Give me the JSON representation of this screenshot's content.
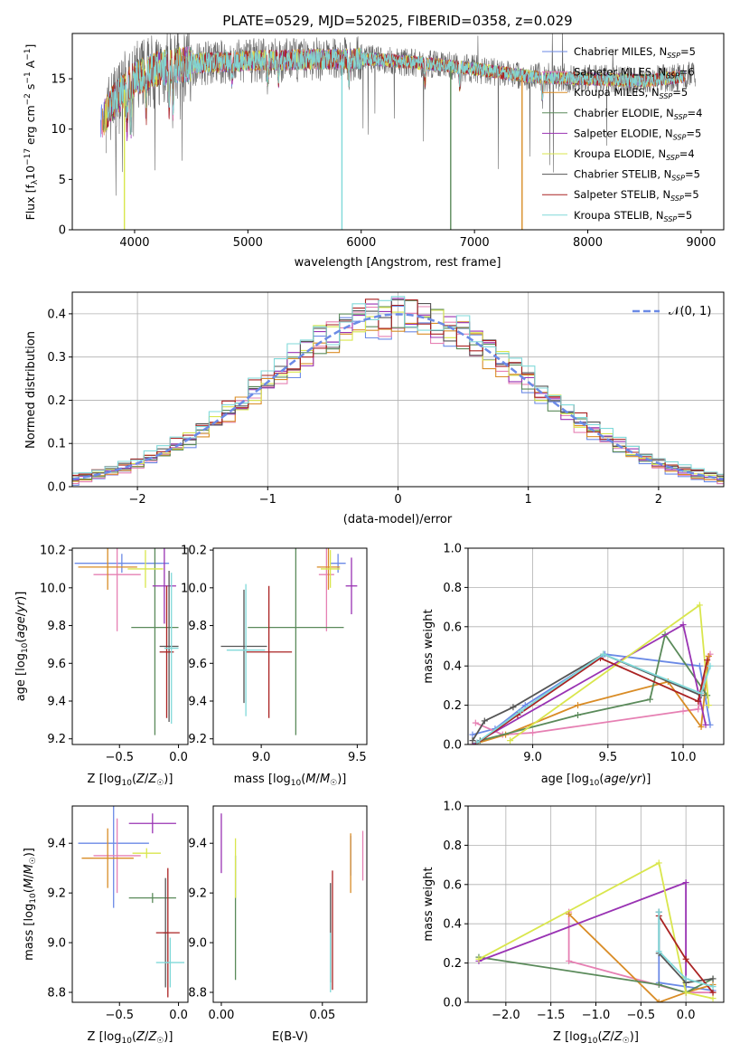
{
  "title": "PLATE=0529, MJD=52025, FIBERID=0358, z=0.029",
  "series": [
    {
      "name": "Chabrier MILES, N<sub>SSP</sub>=5",
      "legend": "Chabrier MILES, N_SSP=5",
      "color": "#6b8ae6"
    },
    {
      "name": "Salpeter MILES, N_SSP=6",
      "color": "#e680b3"
    },
    {
      "name": "Kroupa MILES, N_SSP=5",
      "color": "#d98c26"
    },
    {
      "name": "Chabrier ELODIE, N_SSP=4",
      "color": "#5a8a5a"
    },
    {
      "name": "Salpeter ELODIE, N_SSP=5",
      "color": "#9933b3"
    },
    {
      "name": "Kroupa ELODIE, N_SSP=4",
      "color": "#d9e64d"
    },
    {
      "name": "Chabrier STELIB, N_SSP=5",
      "color": "#555555"
    },
    {
      "name": "Salpeter STELIB, N_SSP=5",
      "color": "#aa2222"
    },
    {
      "name": "Kroupa STELIB, N_SSP=5",
      "color": "#80d9d9"
    }
  ],
  "chart_data": [
    {
      "type": "line",
      "xlabel": "wavelength [Angstrom, rest frame]",
      "ylabel": "Flux [f_λ 10^-17 erg cm^-2 s^-1 A^-1]",
      "xlim": [
        3450,
        9200
      ],
      "ylim": [
        0,
        19.5
      ],
      "xticks": [
        4000,
        5000,
        6000,
        7000,
        8000,
        9000
      ],
      "yticks": [
        0,
        5,
        10,
        15
      ],
      "legend_position": "top-right",
      "continuum": {
        "x": [
          3700,
          3800,
          3900,
          4000,
          4200,
          4500,
          5000,
          5500,
          6000,
          6500,
          7000,
          7500,
          8000,
          8500,
          8900
        ],
        "y": [
          10.5,
          12.5,
          13.8,
          15.0,
          16.0,
          16.5,
          16.8,
          16.9,
          17.0,
          16.6,
          16.0,
          15.2,
          15.0,
          14.8,
          15.3
        ]
      },
      "absorption_features": [
        3934,
        3969,
        4102,
        4304,
        4340,
        4861,
        5175,
        5270,
        5890,
        6563,
        6870,
        7600
      ],
      "mask_spikes": [
        {
          "x": 3910,
          "series": "Kroupa ELODIE, N_SSP=4"
        },
        {
          "x": 5830,
          "series": "Kroupa STELIB, N_SSP=5"
        },
        {
          "x": 6790,
          "series": "Chabrier ELODIE, N_SSP=4"
        },
        {
          "x": 7420,
          "series": "Kroupa MILES, N_SSP=5"
        }
      ]
    },
    {
      "type": "histogram",
      "xlabel": "(data-model)/error",
      "ylabel": "Normed distribution",
      "xlim": [
        -2.5,
        2.5
      ],
      "ylim": [
        0,
        0.45
      ],
      "xticks": [
        -2,
        -1,
        0,
        1,
        2
      ],
      "yticks": [
        0.0,
        0.1,
        0.2,
        0.3,
        0.4
      ],
      "bin_width": 0.1,
      "reference_curve": {
        "name": "N(0,1)",
        "label": "𝒩(0, 1)",
        "color": "#6b8ae6",
        "style": "dashed"
      },
      "grid": true
    },
    {
      "type": "errorbar",
      "xlabel": "Z [log10(Z/Z☉)]",
      "ylabel": "age  [log10(age/yr)]",
      "xlim": [
        -0.9,
        0.08
      ],
      "ylim": [
        9.17,
        10.21
      ],
      "xticks": [
        -0.5,
        0.0
      ],
      "yticks": [
        9.2,
        9.4,
        9.6,
        9.8,
        10.0,
        10.2
      ],
      "points": [
        {
          "series": 0,
          "x": -0.48,
          "xerr": 0.4,
          "y": 10.13,
          "yerr": 0.05
        },
        {
          "series": 1,
          "x": -0.52,
          "xerr": 0.2,
          "y": 10.07,
          "yerr": 0.3
        },
        {
          "series": 2,
          "x": -0.6,
          "xerr": 0.25,
          "y": 10.11,
          "yerr": 0.12
        },
        {
          "series": 3,
          "x": -0.2,
          "xerr": 0.2,
          "y": 9.79,
          "yerr": 0.57
        },
        {
          "series": 4,
          "x": -0.12,
          "xerr": 0.1,
          "y": 10.01,
          "yerr": 0.2
        },
        {
          "series": 5,
          "x": -0.28,
          "xerr": 0.15,
          "y": 10.1,
          "yerr": 0.1
        },
        {
          "series": 6,
          "x": -0.08,
          "xerr": 0.08,
          "y": 9.69,
          "yerr": 0.4
        },
        {
          "series": 7,
          "x": -0.1,
          "xerr": 0.06,
          "y": 9.66,
          "yerr": 0.35
        },
        {
          "series": 8,
          "x": -0.06,
          "xerr": 0.06,
          "y": 9.68,
          "yerr": 0.4
        }
      ]
    },
    {
      "type": "errorbar",
      "xlabel": "mass [log10(M/M☉)]",
      "ylabel": "",
      "xlim": [
        8.75,
        9.55
      ],
      "ylim": [
        9.17,
        10.21
      ],
      "xticks": [
        9.0,
        9.5
      ],
      "yticks": [
        9.2,
        9.4,
        9.6,
        9.8,
        10.0,
        10.2
      ],
      "points": [
        {
          "series": 0,
          "x": 9.4,
          "xerr": 0.04,
          "y": 10.13,
          "yerr": 0.05
        },
        {
          "series": 1,
          "x": 9.34,
          "xerr": 0.04,
          "y": 10.07,
          "yerr": 0.3
        },
        {
          "series": 2,
          "x": 9.35,
          "xerr": 0.06,
          "y": 10.11,
          "yerr": 0.12
        },
        {
          "series": 3,
          "x": 9.18,
          "xerr": 0.25,
          "y": 9.79,
          "yerr": 0.57
        },
        {
          "series": 4,
          "x": 9.47,
          "xerr": 0.03,
          "y": 10.01,
          "yerr": 0.15
        },
        {
          "series": 5,
          "x": 9.36,
          "xerr": 0.05,
          "y": 10.1,
          "yerr": 0.1
        },
        {
          "series": 6,
          "x": 8.91,
          "xerr": 0.12,
          "y": 9.69,
          "yerr": 0.3
        },
        {
          "series": 7,
          "x": 9.04,
          "xerr": 0.12,
          "y": 9.66,
          "yerr": 0.35
        },
        {
          "series": 8,
          "x": 8.92,
          "xerr": 0.1,
          "y": 9.67,
          "yerr": 0.35
        }
      ]
    },
    {
      "type": "line",
      "xlabel": "age  [log10(age/yr)]",
      "ylabel": "mass weight",
      "xlim": [
        8.57,
        10.27
      ],
      "ylim": [
        0,
        1.0
      ],
      "xticks": [
        9.0,
        9.5,
        10.0
      ],
      "yticks": [
        0.0,
        0.2,
        0.4,
        0.6,
        0.8,
        1.0
      ],
      "series_points": [
        {
          "series": 0,
          "x": [
            8.6,
            8.75,
            8.95,
            9.48,
            10.11,
            10.18
          ],
          "y": [
            0.05,
            0.08,
            0.2,
            0.46,
            0.4,
            0.1
          ]
        },
        {
          "series": 1,
          "x": [
            8.62,
            8.8,
            9.0,
            10.0,
            10.1,
            10.18
          ],
          "y": [
            0.11,
            0.05,
            0.06,
            0.17,
            0.18,
            0.46
          ]
        },
        {
          "series": 2,
          "x": [
            8.6,
            8.82,
            9.3,
            9.9,
            10.12,
            10.17
          ],
          "y": [
            0.0,
            0.05,
            0.2,
            0.32,
            0.09,
            0.45
          ]
        },
        {
          "series": 3,
          "x": [
            8.65,
            9.3,
            9.78,
            9.88,
            10.16
          ],
          "y": [
            0.02,
            0.15,
            0.23,
            0.56,
            0.25
          ]
        },
        {
          "series": 4,
          "x": [
            8.6,
            10.0,
            10.15
          ],
          "y": [
            0.0,
            0.61,
            0.1
          ]
        },
        {
          "series": 5,
          "x": [
            8.85,
            10.11,
            10.17
          ],
          "y": [
            0.02,
            0.71,
            0.2
          ]
        },
        {
          "series": 6,
          "x": [
            8.6,
            8.68,
            8.87,
            9.47,
            10.12
          ],
          "y": [
            0.02,
            0.12,
            0.19,
            0.46,
            0.25
          ]
        },
        {
          "series": 7,
          "x": [
            8.62,
            8.9,
            9.45,
            10.1,
            10.16
          ],
          "y": [
            0.0,
            0.15,
            0.44,
            0.22,
            0.43
          ]
        },
        {
          "series": 8,
          "x": [
            8.63,
            8.92,
            9.47,
            10.12,
            10.18
          ],
          "y": [
            0.01,
            0.17,
            0.46,
            0.26,
            0.4
          ]
        }
      ]
    },
    {
      "type": "errorbar",
      "xlabel": "Z [log10(Z/Z☉)]",
      "ylabel": "mass [log10(M/M☉)]",
      "xlim": [
        -0.9,
        0.08
      ],
      "ylim": [
        8.76,
        9.55
      ],
      "xticks": [
        -0.5,
        0.0
      ],
      "yticks": [
        8.8,
        9.0,
        9.2,
        9.4
      ],
      "points": [
        {
          "series": 0,
          "x": -0.55,
          "xerr": 0.3,
          "y": 9.4,
          "yerr": 0.26
        },
        {
          "series": 1,
          "x": -0.52,
          "xerr": 0.2,
          "y": 9.35,
          "yerr": 0.15
        },
        {
          "series": 2,
          "x": -0.6,
          "xerr": 0.22,
          "y": 9.34,
          "yerr": 0.12
        },
        {
          "series": 3,
          "x": -0.22,
          "xerr": 0.2,
          "y": 9.18,
          "yerr": 0.02
        },
        {
          "series": 4,
          "x": -0.22,
          "xerr": 0.2,
          "y": 9.48,
          "yerr": 0.04
        },
        {
          "series": 5,
          "x": -0.27,
          "xerr": 0.12,
          "y": 9.36,
          "yerr": 0.02
        },
        {
          "series": 6,
          "x": -0.11,
          "xerr": 0.02,
          "y": 9.04,
          "yerr": 0.22
        },
        {
          "series": 7,
          "x": -0.09,
          "xerr": 0.1,
          "y": 9.04,
          "yerr": 0.26
        },
        {
          "series": 8,
          "x": -0.07,
          "xerr": 0.12,
          "y": 8.92,
          "yerr": 0.1
        }
      ]
    },
    {
      "type": "errorbar",
      "xlabel": "E(B-V)",
      "ylabel": "",
      "xlim": [
        -0.004,
        0.072
      ],
      "ylim": [
        8.76,
        9.55
      ],
      "xticks": [
        0.0,
        0.05
      ],
      "yticks": [
        8.8,
        9.0,
        9.2,
        9.4
      ],
      "points": [
        {
          "series": 0,
          "x": 0.064,
          "y": 9.35,
          "yerr": 0.08
        },
        {
          "series": 1,
          "x": 0.07,
          "y": 9.35,
          "yerr": 0.1
        },
        {
          "series": 2,
          "x": 0.064,
          "y": 9.32,
          "yerr": 0.12
        },
        {
          "series": 3,
          "x": 0.007,
          "y": 9.1,
          "yerr": 0.25
        },
        {
          "series": 4,
          "x": 0.0,
          "y": 9.4,
          "yerr": 0.12
        },
        {
          "series": 5,
          "x": 0.007,
          "y": 9.3,
          "yerr": 0.12
        },
        {
          "series": 6,
          "x": 0.054,
          "y": 9.04,
          "yerr": 0.2
        },
        {
          "series": 7,
          "x": 0.055,
          "y": 9.05,
          "yerr": 0.24
        },
        {
          "series": 8,
          "x": 0.054,
          "y": 8.92,
          "yerr": 0.12
        }
      ]
    },
    {
      "type": "line",
      "xlabel": "Z [log10(Z/Z☉)]",
      "ylabel": "mass weight",
      "xlim": [
        -2.42,
        0.42
      ],
      "ylim": [
        0,
        1.0
      ],
      "xticks": [
        -2.0,
        -1.5,
        -1.0,
        -0.5,
        0.0
      ],
      "yticks": [
        0.0,
        0.2,
        0.4,
        0.6,
        0.8,
        1.0
      ],
      "series_points": [
        {
          "series": 0,
          "x": [
            -0.3,
            -0.3,
            0.0,
            0.3
          ],
          "y": [
            0.46,
            0.1,
            0.08,
            0.06
          ]
        },
        {
          "series": 1,
          "x": [
            -1.3,
            -1.3,
            0.0,
            0.3
          ],
          "y": [
            0.46,
            0.21,
            0.05,
            0.05
          ]
        },
        {
          "series": 2,
          "x": [
            -1.3,
            -0.3,
            0.0,
            0.3
          ],
          "y": [
            0.45,
            0.0,
            0.05,
            0.09
          ]
        },
        {
          "series": 3,
          "x": [
            -2.3,
            -0.3,
            0.0,
            0.3
          ],
          "y": [
            0.23,
            0.09,
            0.05,
            0.12
          ]
        },
        {
          "series": 4,
          "x": [
            -2.3,
            0.0,
            0.0
          ],
          "y": [
            0.21,
            0.61,
            0.1
          ]
        },
        {
          "series": 5,
          "x": [
            -2.3,
            -0.3,
            0.0,
            0.3
          ],
          "y": [
            0.22,
            0.71,
            0.05,
            0.02
          ]
        },
        {
          "series": 6,
          "x": [
            -0.3,
            -0.3,
            0.0,
            0.3
          ],
          "y": [
            0.46,
            0.25,
            0.1,
            0.12
          ]
        },
        {
          "series": 7,
          "x": [
            -0.3,
            0.0,
            0.3
          ],
          "y": [
            0.44,
            0.22,
            0.05
          ]
        },
        {
          "series": 8,
          "x": [
            -0.3,
            -0.3,
            0.0,
            0.3
          ],
          "y": [
            0.46,
            0.26,
            0.12,
            0.08
          ]
        }
      ]
    }
  ]
}
